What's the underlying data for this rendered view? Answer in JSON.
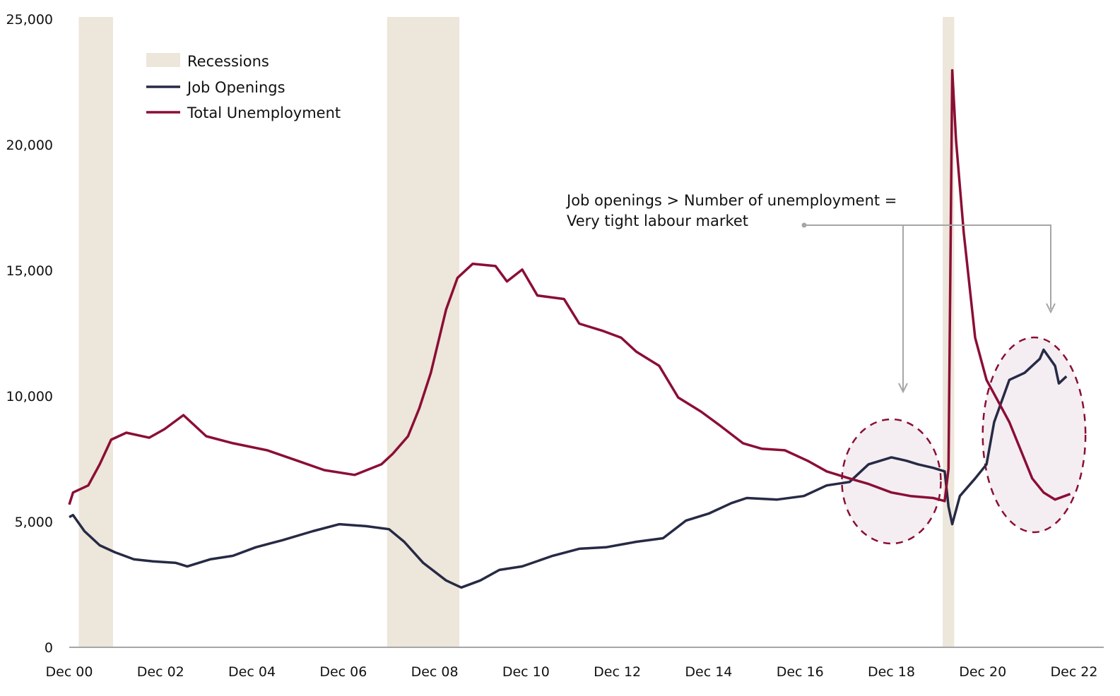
{
  "chart_data": {
    "type": "line",
    "title": "",
    "xlabel": "",
    "ylabel": "",
    "ylim": [
      0,
      25000
    ],
    "yticks": [
      "0",
      "5,000",
      "10,000",
      "15,000",
      "20,000",
      "25,000"
    ],
    "ytick_values": [
      0,
      5000,
      10000,
      15000,
      20000,
      25000
    ],
    "xlim": [
      "2000-12",
      "2022-12"
    ],
    "xticks": [
      "Dec 00",
      "Dec 02",
      "Dec 04",
      "Dec 06",
      "Dec 08",
      "Dec 10",
      "Dec 12",
      "Dec 14",
      "Dec 16",
      "Dec 18",
      "Dec 20",
      "Dec 22"
    ],
    "xtick_dates": [
      "2000-12",
      "2002-12",
      "2004-12",
      "2006-12",
      "2008-12",
      "2010-12",
      "2012-12",
      "2014-12",
      "2016-12",
      "2018-12",
      "2020-12",
      "2022-12"
    ],
    "grid": false,
    "legend_position": "top-left",
    "legend": [
      "Recessions",
      "Job Openings",
      "Total Unemployment"
    ],
    "recessions": [
      {
        "start": "2001-03",
        "end": "2001-11"
      },
      {
        "start": "2007-12",
        "end": "2009-06"
      },
      {
        "start": "2020-02",
        "end": "2020-04"
      }
    ],
    "colors": {
      "recession": "#ede6da",
      "job_openings": "#262a45",
      "unemployment": "#8b0e35",
      "annotation": "#a6a6a6",
      "highlight_fill": "#f4eef3"
    },
    "series": [
      {
        "name": "Job Openings",
        "points": [
          [
            "2000-12",
            5180
          ],
          [
            "2001-01",
            5260
          ],
          [
            "2001-04",
            4620
          ],
          [
            "2001-08",
            4060
          ],
          [
            "2001-12",
            3780
          ],
          [
            "2002-05",
            3500
          ],
          [
            "2002-10",
            3420
          ],
          [
            "2003-04",
            3360
          ],
          [
            "2003-07",
            3220
          ],
          [
            "2004-01",
            3500
          ],
          [
            "2004-07",
            3640
          ],
          [
            "2005-01",
            3980
          ],
          [
            "2005-08",
            4260
          ],
          [
            "2006-04",
            4620
          ],
          [
            "2006-11",
            4900
          ],
          [
            "2007-06",
            4820
          ],
          [
            "2007-12",
            4700
          ],
          [
            "2008-04",
            4200
          ],
          [
            "2008-09",
            3360
          ],
          [
            "2009-03",
            2660
          ],
          [
            "2009-07",
            2380
          ],
          [
            "2009-12",
            2660
          ],
          [
            "2010-05",
            3080
          ],
          [
            "2010-11",
            3220
          ],
          [
            "2011-07",
            3640
          ],
          [
            "2012-02",
            3920
          ],
          [
            "2012-09",
            3980
          ],
          [
            "2013-05",
            4200
          ],
          [
            "2013-12",
            4340
          ],
          [
            "2014-06",
            5040
          ],
          [
            "2014-12",
            5320
          ],
          [
            "2015-06",
            5740
          ],
          [
            "2015-10",
            5940
          ],
          [
            "2016-06",
            5880
          ],
          [
            "2017-01",
            6020
          ],
          [
            "2017-07",
            6440
          ],
          [
            "2018-01",
            6580
          ],
          [
            "2018-06",
            7280
          ],
          [
            "2018-12",
            7560
          ],
          [
            "2019-04",
            7420
          ],
          [
            "2019-07",
            7280
          ],
          [
            "2019-11",
            7140
          ],
          [
            "2020-02",
            7000
          ],
          [
            "2020-03",
            5600
          ],
          [
            "2020-04",
            4900
          ],
          [
            "2020-06",
            6020
          ],
          [
            "2020-10",
            6720
          ],
          [
            "2021-01",
            7280
          ],
          [
            "2021-03",
            8960
          ],
          [
            "2021-07",
            10640
          ],
          [
            "2021-11",
            10920
          ],
          [
            "2022-03",
            11480
          ],
          [
            "2022-04",
            11840
          ],
          [
            "2022-07",
            11200
          ],
          [
            "2022-08",
            10500
          ],
          [
            "2022-10",
            10780
          ]
        ]
      },
      {
        "name": "Total Unemployment",
        "points": [
          [
            "2000-12",
            5680
          ],
          [
            "2001-01",
            6160
          ],
          [
            "2001-05",
            6440
          ],
          [
            "2001-08",
            7280
          ],
          [
            "2001-11",
            8260
          ],
          [
            "2002-03",
            8540
          ],
          [
            "2002-09",
            8340
          ],
          [
            "2003-01",
            8680
          ],
          [
            "2003-06",
            9240
          ],
          [
            "2003-12",
            8400
          ],
          [
            "2004-07",
            8120
          ],
          [
            "2005-04",
            7840
          ],
          [
            "2005-12",
            7420
          ],
          [
            "2006-07",
            7050
          ],
          [
            "2007-03",
            6860
          ],
          [
            "2007-10",
            7280
          ],
          [
            "2008-01",
            7700
          ],
          [
            "2008-05",
            8400
          ],
          [
            "2008-08",
            9520
          ],
          [
            "2008-11",
            10920
          ],
          [
            "2009-03",
            13440
          ],
          [
            "2009-06",
            14700
          ],
          [
            "2009-10",
            15260
          ],
          [
            "2010-04",
            15170
          ],
          [
            "2010-07",
            14560
          ],
          [
            "2010-11",
            15030
          ],
          [
            "2011-03",
            14000
          ],
          [
            "2011-10",
            13860
          ],
          [
            "2012-02",
            12880
          ],
          [
            "2012-08",
            12600
          ],
          [
            "2013-01",
            12320
          ],
          [
            "2013-05",
            11760
          ],
          [
            "2013-11",
            11200
          ],
          [
            "2014-04",
            9940
          ],
          [
            "2014-10",
            9380
          ],
          [
            "2015-03",
            8820
          ],
          [
            "2015-09",
            8120
          ],
          [
            "2016-02",
            7900
          ],
          [
            "2016-08",
            7840
          ],
          [
            "2017-02",
            7420
          ],
          [
            "2017-07",
            7000
          ],
          [
            "2018-01",
            6720
          ],
          [
            "2018-06",
            6500
          ],
          [
            "2018-12",
            6160
          ],
          [
            "2019-05",
            6020
          ],
          [
            "2019-11",
            5940
          ],
          [
            "2020-02",
            5820
          ],
          [
            "2020-03",
            7100
          ],
          [
            "2020-04",
            22960
          ],
          [
            "2020-05",
            20160
          ],
          [
            "2020-07",
            16520
          ],
          [
            "2020-10",
            12320
          ],
          [
            "2021-01",
            10640
          ],
          [
            "2021-04",
            9800
          ],
          [
            "2021-07",
            8960
          ],
          [
            "2021-10",
            7840
          ],
          [
            "2022-01",
            6720
          ],
          [
            "2022-04",
            6160
          ],
          [
            "2022-07",
            5880
          ],
          [
            "2022-11",
            6100
          ]
        ]
      }
    ],
    "annotation": {
      "line1": "Job openings > Number of unemployment =",
      "line2": "Very tight labour market",
      "highlights": [
        {
          "start": "2017-11",
          "end": "2020-01"
        },
        {
          "start": "2020-12",
          "end": "2023-03"
        }
      ]
    }
  }
}
